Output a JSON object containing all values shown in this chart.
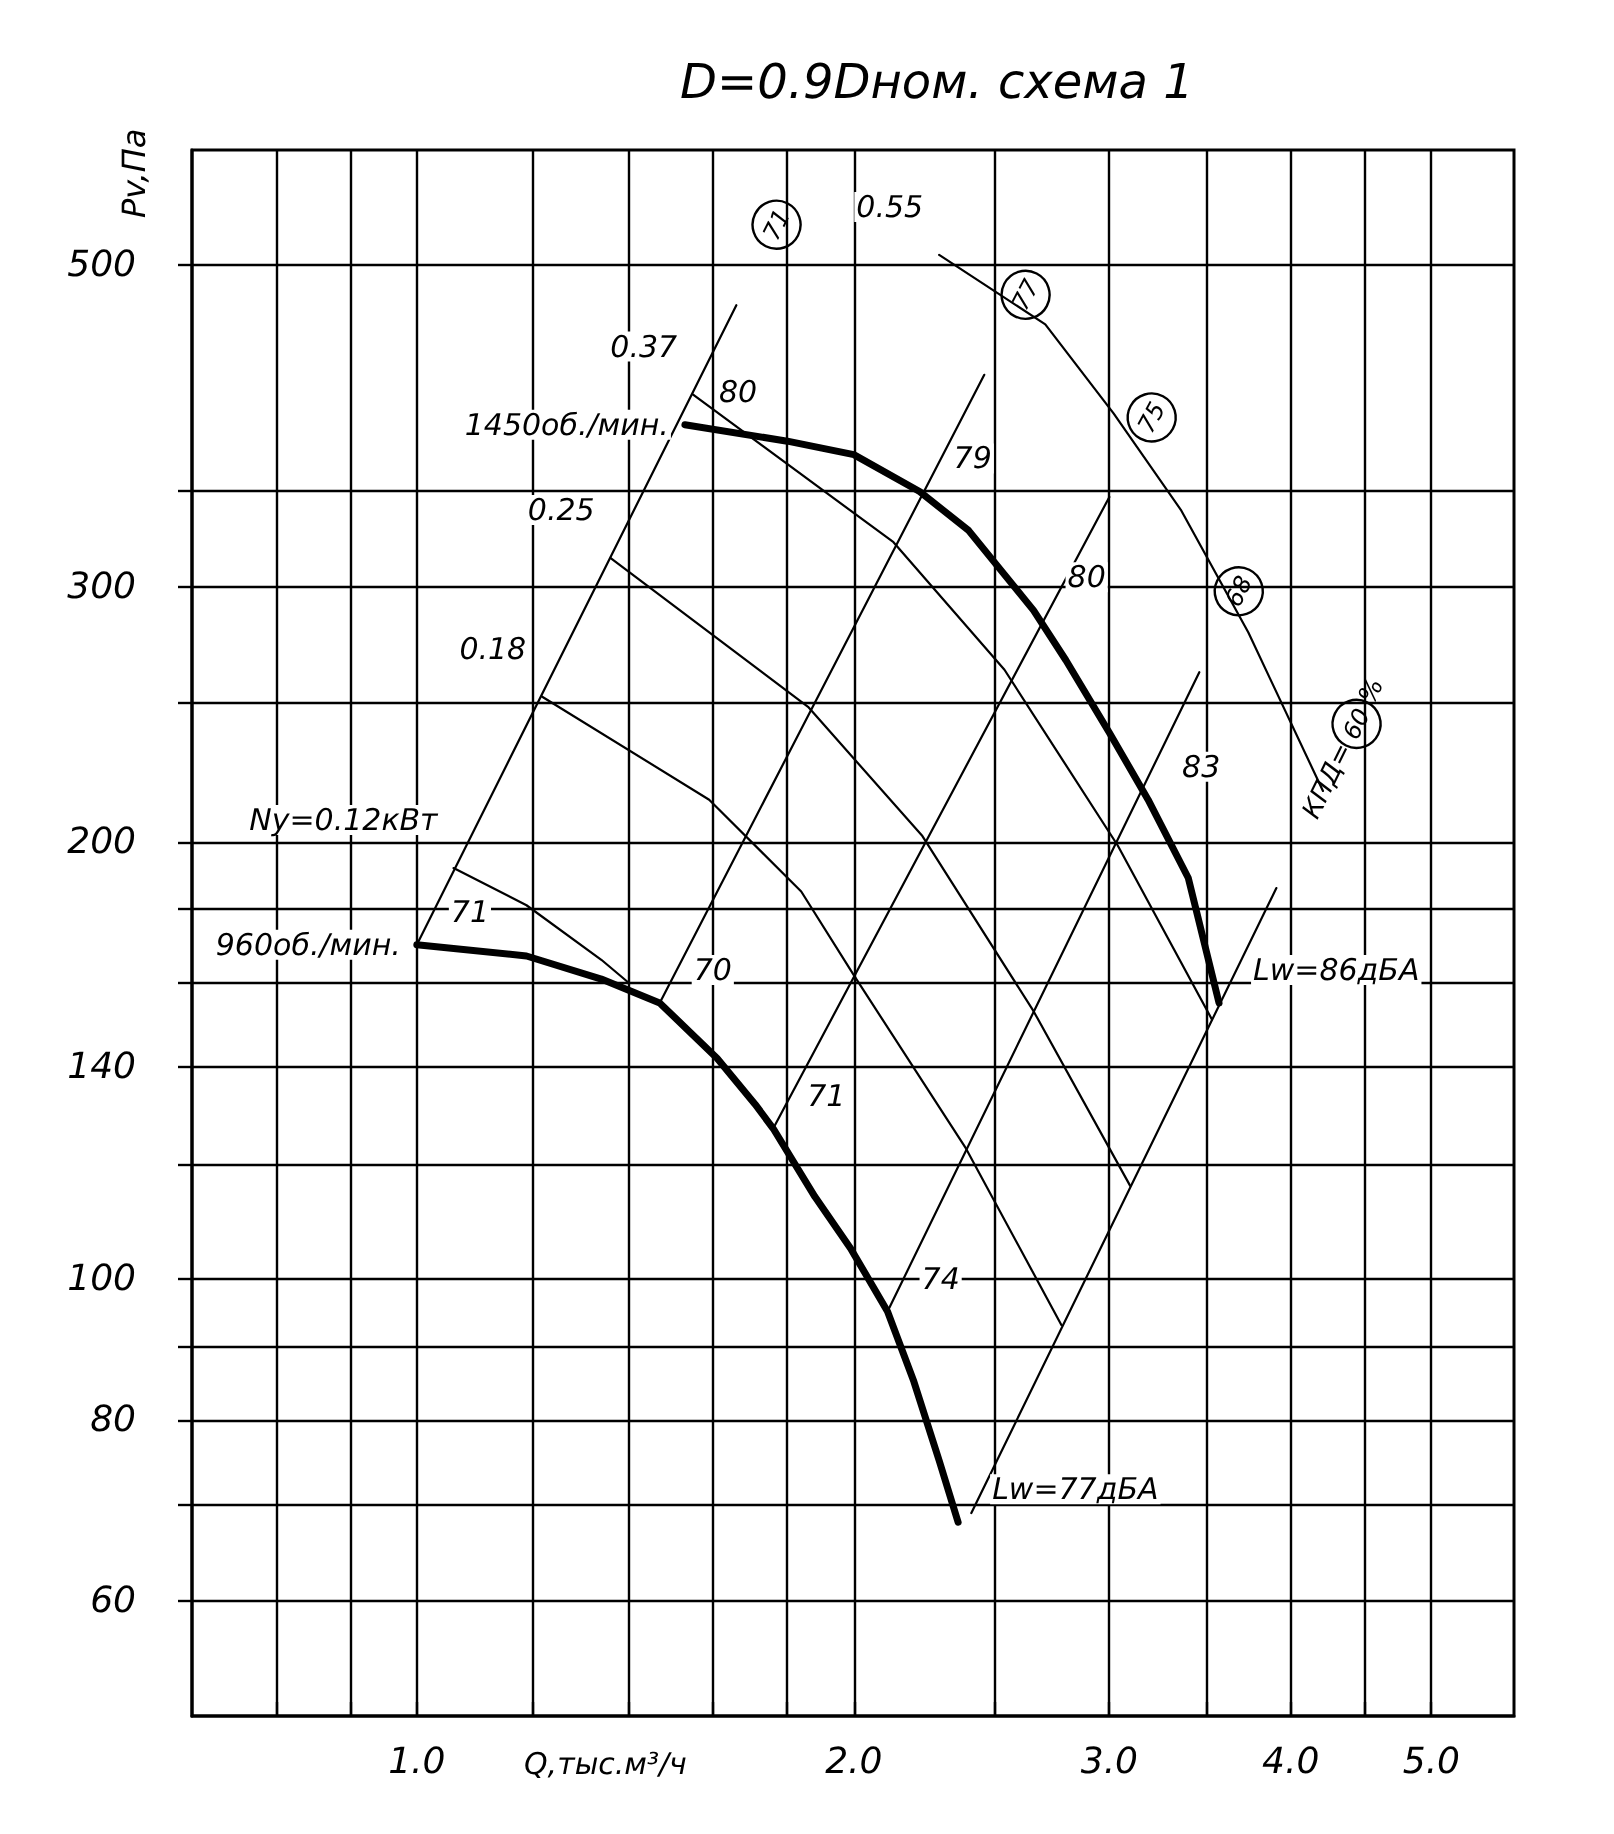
{
  "chart_data": {
    "type": "line",
    "title": "D=0.9Dном. схема 1",
    "xlabel": "Q,тыс.м³/ч",
    "ylabel": "Pv,Па",
    "log": "xy",
    "grid": true,
    "xlim": [
      0.7,
      5.7
    ],
    "xticks": [
      {
        "value": 0.8,
        "label": null
      },
      {
        "value": 0.9,
        "label": null
      },
      {
        "value": 1,
        "label": "1.0"
      },
      {
        "value": 1.2,
        "label": null
      },
      {
        "value": 1.4,
        "label": null
      },
      {
        "value": 1.6,
        "label": null
      },
      {
        "value": 1.8,
        "label": null
      },
      {
        "value": 2,
        "label": "2.0"
      },
      {
        "value": 2.5,
        "label": null
      },
      {
        "value": 3,
        "label": "3.0"
      },
      {
        "value": 3.5,
        "label": null
      },
      {
        "value": 4,
        "label": "4.0"
      },
      {
        "value": 4.5,
        "label": null
      },
      {
        "value": 5,
        "label": "5.0"
      }
    ],
    "ylim": [
      50,
      600
    ],
    "yticks": [
      60,
      {
        "value": 70,
        "label": null
      },
      80,
      {
        "value": 90,
        "label": null
      },
      100,
      {
        "value": 120,
        "label": null
      },
      140,
      {
        "value": 160,
        "label": null
      },
      {
        "value": 180,
        "label": null
      },
      200,
      {
        "value": 250,
        "label": null
      },
      300,
      {
        "value": 350,
        "label": null
      },
      500
    ],
    "series": [
      {
        "name": "1450об./мин.",
        "color": "#000000",
        "x": [
          1.53,
          1.8,
          2.0,
          2.22,
          2.4,
          2.66,
          2.8,
          3.0,
          3.19,
          3.4,
          3.57
        ],
        "values": [
          388,
          378,
          370,
          349,
          328,
          289,
          267,
          238,
          214,
          189,
          155
        ]
      },
      {
        "name": "960об./мин.",
        "color": "#000000",
        "x": [
          1.0,
          1.19,
          1.34,
          1.47,
          1.61,
          1.71,
          1.76,
          1.88,
          1.99,
          2.11,
          2.2,
          2.29,
          2.36
        ],
        "values": [
          170,
          167,
          161,
          155,
          142,
          132,
          127,
          114,
          105,
          95,
          85,
          75,
          68
        ]
      },
      {
        "name": "Ny=0.12кВт",
        "color": "#000000",
        "x": [
          1.06,
          1.19,
          1.34,
          1.4
        ],
        "values": [
          192,
          181,
          166,
          160
        ]
      },
      {
        "name": "0.18",
        "color": "#000000",
        "x": [
          1.22,
          1.59,
          1.84,
          2.0,
          2.39,
          2.78
        ],
        "values": [
          252,
          214,
          185,
          162,
          123,
          93
        ]
      },
      {
        "name": "0.25",
        "color": "#000000",
        "x": [
          1.36,
          1.86,
          2.23,
          2.66,
          3.1
        ],
        "values": [
          314,
          248,
          202,
          153,
          116
        ]
      },
      {
        "name": "0.37",
        "color": "#000000",
        "x": [
          1.55,
          2.13,
          2.54,
          3.04,
          3.53
        ],
        "values": [
          407,
          322,
          263,
          199,
          151
        ]
      },
      {
        "name": "0.55",
        "color": "#000000",
        "x": [
          2.29,
          2.71,
          3.02,
          3.36,
          3.74,
          4.21
        ],
        "values": [
          508,
          455,
          395,
          339,
          279,
          217
        ]
      },
      {
        "color": "#000000",
        "x": [
          1.0,
          1.66
        ],
        "values": [
          170,
          469
        ]
      },
      {
        "color": "#000000",
        "x": [
          1.47,
          2.46
        ],
        "values": [
          155,
          420
        ]
      },
      {
        "color": "#000000",
        "x": [
          1.76,
          3.0
        ],
        "values": [
          127,
          346
        ]
      },
      {
        "color": "#000000",
        "x": [
          2.11,
          3.46
        ],
        "values": [
          95,
          262
        ]
      },
      {
        "color": "#000000",
        "x": [
          2.41,
          3.91
        ],
        "values": [
          69,
          186
        ]
      }
    ],
    "annotations": [
      "71",
      "77",
      "75",
      "68",
      "КПД=60%",
      {
        "text": "80",
        "x": 1.53,
        "y": 388
      },
      {
        "text": "79",
        "x": 2.22,
        "y": 349
      },
      {
        "text": "80",
        "x": 2.66,
        "y": 289
      },
      {
        "text": "83",
        "x": 3.19,
        "y": 214
      },
      {
        "text": "Lw=86дБА",
        "x": 3.57,
        "y": 155
      },
      {
        "text": "71",
        "x": 1.0,
        "y": 170
      },
      {
        "text": "70",
        "x": 1.47,
        "y": 155
      },
      {
        "text": "71",
        "x": 1.76,
        "y": 127
      },
      {
        "text": "74",
        "x": 2.11,
        "y": 95
      },
      {
        "text": "Lw=77дБА",
        "x": 2.36,
        "y": 68
      }
    ]
  }
}
